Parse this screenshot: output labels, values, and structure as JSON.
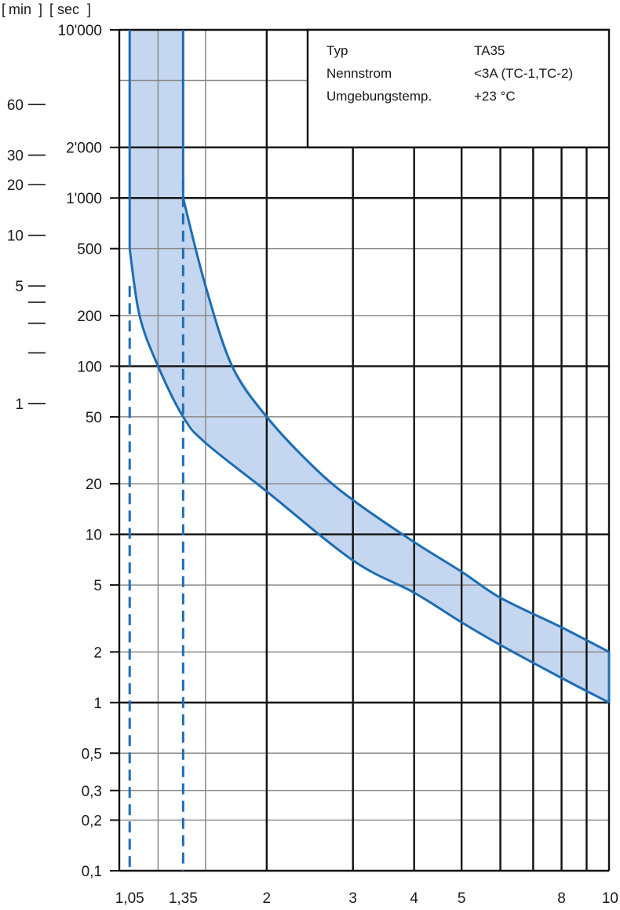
{
  "header": {
    "min_unit": "min",
    "sec_unit": "sec"
  },
  "info_box": {
    "rows": [
      {
        "label": "Typ",
        "value": "TA35"
      },
      {
        "label": "Nennstrom",
        "value": "<3A (TC-1,TC-2)"
      },
      {
        "label": "Umgebungstemp.",
        "value": "+23 °C"
      }
    ]
  },
  "colors": {
    "band_fill": "#c5d6f0",
    "curve": "#1c6db4",
    "grid_major": "#111111",
    "grid_minor": "#8a8a8a"
  },
  "chart_data": {
    "type": "area",
    "title": "",
    "xlabel": "",
    "ylabel": "",
    "x_scale": "log",
    "y_scale": "log",
    "xlim": [
      1,
      10
    ],
    "ylim": [
      0.1,
      10000
    ],
    "x_tick_labels": [
      {
        "x": 1.05,
        "label": "1,05"
      },
      {
        "x": 1.35,
        "label": "1,35"
      },
      {
        "x": 2,
        "label": "2"
      },
      {
        "x": 3,
        "label": "3"
      },
      {
        "x": 4,
        "label": "4"
      },
      {
        "x": 5,
        "label": "5"
      },
      {
        "x": 8,
        "label": "8"
      },
      {
        "x": 10,
        "label": "10"
      }
    ],
    "x_major_grid": [
      1,
      2,
      3,
      4,
      5,
      6,
      7,
      8,
      9,
      10
    ],
    "x_minor_grid": [
      1.2,
      1.5
    ],
    "y_tick_labels_sec": [
      {
        "y": 10000,
        "label": "10'000"
      },
      {
        "y": 2000,
        "label": "2'000"
      },
      {
        "y": 1000,
        "label": "1'000"
      },
      {
        "y": 500,
        "label": "500"
      },
      {
        "y": 200,
        "label": "200"
      },
      {
        "y": 100,
        "label": "100"
      },
      {
        "y": 50,
        "label": "50"
      },
      {
        "y": 20,
        "label": "20"
      },
      {
        "y": 10,
        "label": "10"
      },
      {
        "y": 5,
        "label": "5"
      },
      {
        "y": 2,
        "label": "2"
      },
      {
        "y": 1,
        "label": "1"
      },
      {
        "y": 0.5,
        "label": "0,5"
      },
      {
        "y": 0.3,
        "label": "0,3"
      },
      {
        "y": 0.2,
        "label": "0,2"
      },
      {
        "y": 0.1,
        "label": "0,1"
      }
    ],
    "y_tick_labels_min": [
      {
        "y": 3600,
        "label": "60"
      },
      {
        "y": 1800,
        "label": "30"
      },
      {
        "y": 1200,
        "label": "20"
      },
      {
        "y": 600,
        "label": "10"
      },
      {
        "y": 300,
        "label": "5"
      },
      {
        "y": 240,
        "label": ""
      },
      {
        "y": 180,
        "label": ""
      },
      {
        "y": 120,
        "label": ""
      },
      {
        "y": 60,
        "label": "1"
      }
    ],
    "y_major_grid": [
      0.1,
      1,
      10,
      100,
      1000,
      2000,
      10000
    ],
    "y_minor_grid": [
      0.2,
      0.3,
      0.5,
      2,
      5,
      20,
      50,
      200,
      500,
      5000
    ],
    "top_region_vertical_grid": [
      1,
      1.05,
      1.2,
      1.35,
      1.5,
      2
    ],
    "dashed_markers": [
      1.05,
      1.35
    ],
    "series": [
      {
        "role": "lower",
        "points": [
          [
            1.05,
            500
          ],
          [
            1.1,
            200
          ],
          [
            1.2,
            100
          ],
          [
            1.35,
            50
          ],
          [
            1.5,
            35
          ],
          [
            2,
            18
          ],
          [
            3,
            7
          ],
          [
            4,
            4.5
          ],
          [
            5,
            3
          ],
          [
            6,
            2.2
          ],
          [
            8,
            1.4
          ],
          [
            10,
            1
          ]
        ]
      },
      {
        "role": "upper",
        "points": [
          [
            1.35,
            1000
          ],
          [
            1.5,
            300
          ],
          [
            1.7,
            100
          ],
          [
            2,
            50
          ],
          [
            2.5,
            25
          ],
          [
            3,
            16
          ],
          [
            4,
            9
          ],
          [
            5,
            6
          ],
          [
            6,
            4.2
          ],
          [
            8,
            2.8
          ],
          [
            10,
            2
          ]
        ]
      }
    ]
  }
}
